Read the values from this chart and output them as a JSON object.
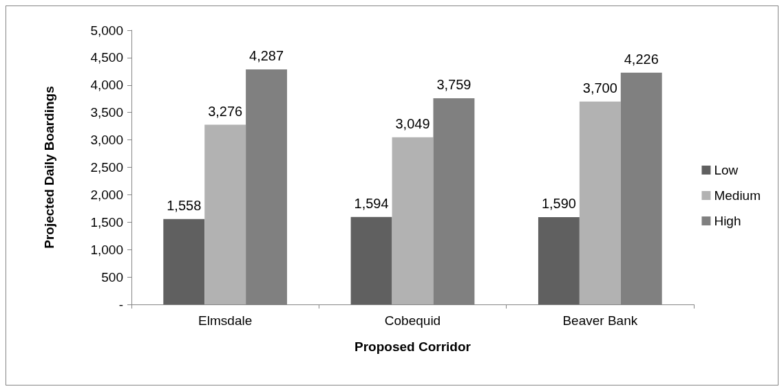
{
  "chart_data": {
    "type": "bar",
    "xlabel": "Proposed Corridor",
    "ylabel": "Projected Daily Boardings",
    "categories": [
      "Elmsdale",
      "Cobequid",
      "Beaver Bank"
    ],
    "series": [
      {
        "name": "Low",
        "color": "#606060",
        "values": [
          1558,
          1594,
          1590
        ],
        "value_labels": [
          "1,558",
          "1,594",
          "1,590"
        ]
      },
      {
        "name": "Medium",
        "color": "#b2b2b2",
        "values": [
          3276,
          3049,
          3700
        ],
        "value_labels": [
          "3,276",
          "3,049",
          "3,700"
        ]
      },
      {
        "name": "High",
        "color": "#808080",
        "values": [
          4287,
          3759,
          4226
        ],
        "value_labels": [
          "4,287",
          "3,759",
          "4,226"
        ]
      }
    ],
    "ylim": [
      0,
      5000
    ],
    "yticks": [
      {
        "value": 0,
        "label": "-"
      },
      500,
      {
        "value": 1000,
        "label": "1,000"
      },
      {
        "value": 1500,
        "label": "1,500"
      },
      {
        "value": 2000,
        "label": "2,000"
      },
      {
        "value": 2500,
        "label": "2,500"
      },
      {
        "value": 3000,
        "label": "3,000"
      },
      {
        "value": 3500,
        "label": "3,500"
      },
      {
        "value": 4000,
        "label": "4,000"
      },
      {
        "value": 4500,
        "label": "4,500"
      },
      {
        "value": 5000,
        "label": "5,000"
      }
    ],
    "grid": false,
    "legend": "right"
  }
}
